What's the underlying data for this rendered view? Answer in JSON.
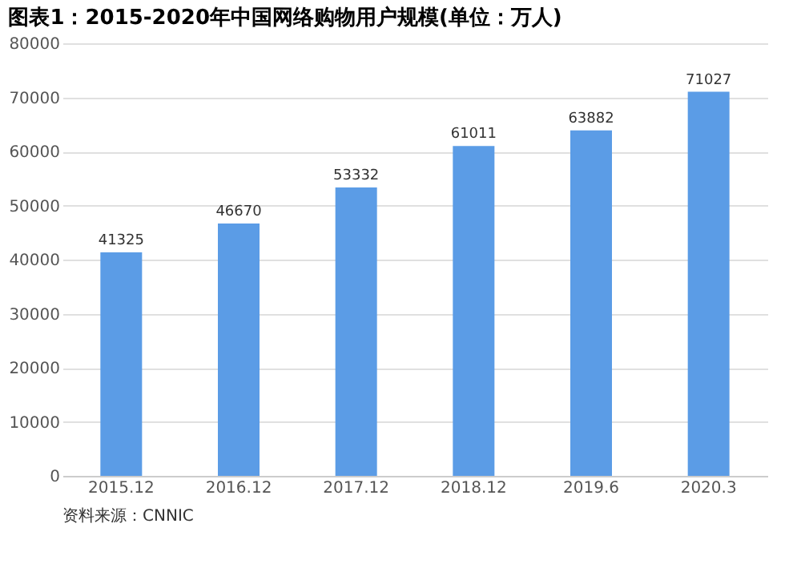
{
  "chart_data": {
    "type": "bar",
    "title": "图表1：2015-2020年中国网络购物用户规模(单位：万人)",
    "categories": [
      "2015.12",
      "2016.12",
      "2017.12",
      "2018.12",
      "2019.6",
      "2020.3"
    ],
    "values": [
      41325,
      46670,
      53332,
      61011,
      63882,
      71027
    ],
    "color": "#5b9ce6",
    "ylim": [
      0,
      80000
    ],
    "yticks": [
      0,
      10000,
      20000,
      30000,
      40000,
      50000,
      60000,
      70000,
      80000
    ],
    "grid": "y",
    "data_labels": true,
    "annotations": [
      "资料来源：CNNIC"
    ]
  }
}
